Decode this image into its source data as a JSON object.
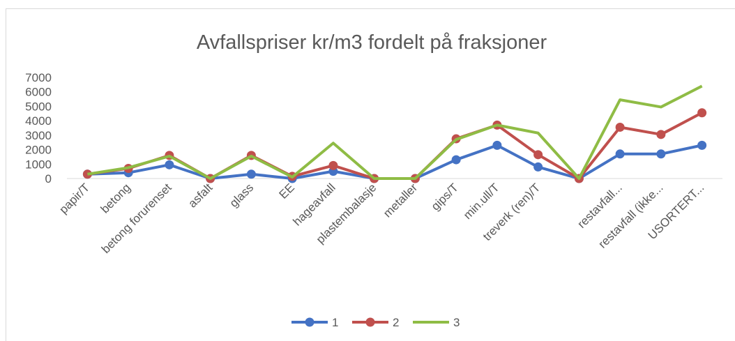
{
  "chart_data": {
    "type": "line",
    "title": "Avfallspriser kr/m3 fordelt på fraksjoner",
    "categories": [
      "papir/T",
      "betong",
      "betong forurenset",
      "asfalt",
      "glass",
      "EE",
      "hageavfall",
      "plastembalasje",
      "metaller",
      "gips/T",
      "min.ull/T",
      "treverk (ren)/T",
      null,
      "restavfall...",
      "restavfall (ikke...",
      "USORTERT..."
    ],
    "series": [
      {
        "name": "1",
        "color": "#4472c4",
        "markers": true,
        "values": [
          300,
          400,
          950,
          0,
          300,
          0,
          500,
          0,
          0,
          1300,
          2300,
          800,
          0,
          1700,
          1700,
          2300
        ]
      },
      {
        "name": "2",
        "color": "#c0504d",
        "markers": true,
        "values": [
          300,
          700,
          1600,
          0,
          1600,
          150,
          900,
          0,
          0,
          2750,
          3700,
          1650,
          0,
          3550,
          3050,
          4550
        ]
      },
      {
        "name": "3",
        "color": "#8fbc45",
        "markers": false,
        "values": [
          300,
          750,
          1550,
          0,
          1550,
          100,
          2450,
          0,
          0,
          2700,
          3700,
          3150,
          0,
          5450,
          4950,
          6400
        ]
      }
    ],
    "ylim": [
      0,
      7000
    ],
    "yticks": [
      0,
      1000,
      2000,
      3000,
      4000,
      5000,
      6000,
      7000
    ],
    "grid": false,
    "legend": "bottom"
  }
}
